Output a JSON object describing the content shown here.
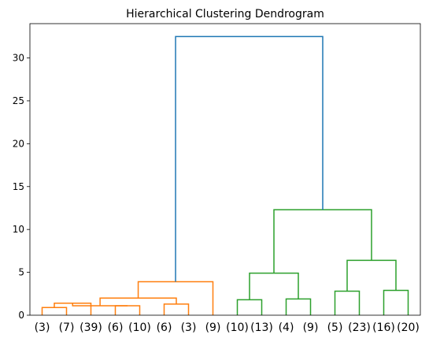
{
  "chart_data": {
    "type": "dendrogram",
    "title": "Hierarchical Clustering Dendrogram",
    "xlabel": "",
    "ylabel": "",
    "ylim": [
      0,
      34
    ],
    "yticks": [
      0,
      5,
      10,
      15,
      20,
      25,
      30
    ],
    "ytick_labels": [
      "0",
      "5",
      "10",
      "15",
      "20",
      "25",
      "30"
    ],
    "leaf_labels": [
      "(3)",
      "(7)",
      "(39)",
      "(6)",
      "(10)",
      "(6)",
      "(3)",
      "(9)",
      "(10)",
      "(13)",
      "(4)",
      "(9)",
      "(5)",
      "(23)",
      "(16)",
      "(20)"
    ],
    "colors": {
      "orange": "#ff7f0e",
      "green": "#2ca02c",
      "blue": "#1f77b4"
    },
    "merges": [
      {
        "left": 0,
        "right": 1,
        "height": 0.9,
        "color": "orange"
      },
      {
        "left": 16,
        "right": 2,
        "height": 1.4,
        "color": "orange"
      },
      {
        "left": 3,
        "right": 4,
        "height": 1.1,
        "color": "orange"
      },
      {
        "left": 5,
        "right": 6,
        "height": 1.3,
        "color": "orange"
      },
      {
        "left": 17,
        "right": 18,
        "height": 1.1,
        "color": "orange"
      },
      {
        "left": 19,
        "right": 20,
        "height": 2.0,
        "color": "orange"
      },
      {
        "left": 21,
        "right": 7,
        "height": 3.9,
        "color": "orange"
      },
      {
        "left": 8,
        "right": 9,
        "height": 1.8,
        "color": "green"
      },
      {
        "left": 10,
        "right": 11,
        "height": 1.9,
        "color": "green"
      },
      {
        "left": 12,
        "right": 13,
        "height": 2.8,
        "color": "green"
      },
      {
        "left": 14,
        "right": 15,
        "height": 2.9,
        "color": "green"
      },
      {
        "left": 23,
        "right": 24,
        "height": 4.9,
        "color": "green"
      },
      {
        "left": 25,
        "right": 26,
        "height": 6.4,
        "color": "green"
      },
      {
        "left": 27,
        "right": 28,
        "height": 12.3,
        "color": "green"
      },
      {
        "left": 22,
        "right": 29,
        "height": 32.5,
        "color": "blue"
      }
    ]
  }
}
